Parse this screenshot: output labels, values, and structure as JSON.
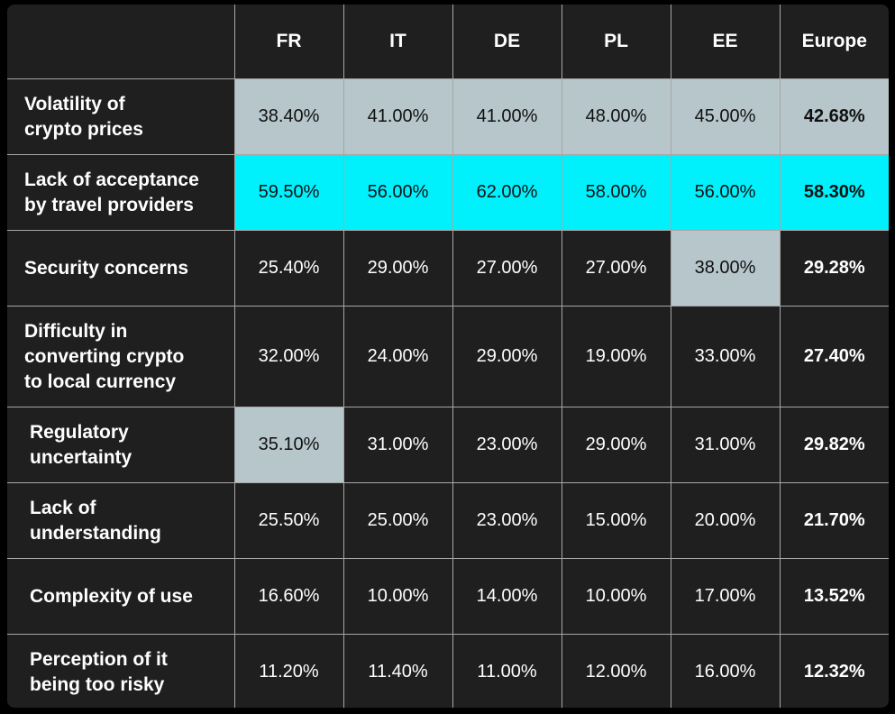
{
  "colors": {
    "background": "#1f1f1f",
    "highlight_grey": "#b6c6cb",
    "highlight_cyan": "#00f0fc",
    "text": "#ffffff"
  },
  "table": {
    "headers": [
      "",
      "FR",
      "IT",
      "DE",
      "PL",
      "EE",
      "Europe"
    ],
    "rows": [
      {
        "label": "Volatility of crypto prices",
        "label_lines": [
          "Volatility of",
          "crypto prices"
        ],
        "values": [
          "38.40%",
          "41.00%",
          "41.00%",
          "48.00%",
          "45.00%",
          "42.68%"
        ],
        "highlight": [
          "grey",
          "grey",
          "grey",
          "grey",
          "grey",
          "grey"
        ]
      },
      {
        "label": "Lack of acceptance by travel providers",
        "label_lines": [
          "Lack of acceptance",
          "by travel providers"
        ],
        "values": [
          "59.50%",
          "56.00%",
          "62.00%",
          "58.00%",
          "56.00%",
          "58.30%"
        ],
        "highlight": [
          "cyan",
          "cyan",
          "cyan",
          "cyan",
          "cyan",
          "cyan"
        ]
      },
      {
        "label": "Security concerns",
        "label_lines": [
          "Security concerns"
        ],
        "values": [
          "25.40%",
          "29.00%",
          "27.00%",
          "27.00%",
          "38.00%",
          "29.28%"
        ],
        "highlight": [
          "",
          "",
          "",
          "",
          "grey",
          ""
        ]
      },
      {
        "label": "Difficulty in converting crypto to local currency",
        "label_lines": [
          "Difficulty in",
          "converting crypto",
          "to local currency"
        ],
        "values": [
          "32.00%",
          "24.00%",
          "29.00%",
          "19.00%",
          "33.00%",
          "27.40%"
        ],
        "highlight": [
          "",
          "",
          "",
          "",
          "",
          ""
        ]
      },
      {
        "label": "Regulatory uncertainty",
        "label_lines": [
          "Regulatory",
          "uncertainty"
        ],
        "values": [
          "35.10%",
          "31.00%",
          "23.00%",
          "29.00%",
          "31.00%",
          "29.82%"
        ],
        "highlight": [
          "grey",
          "",
          "",
          "",
          "",
          ""
        ]
      },
      {
        "label": "Lack of understanding",
        "label_lines": [
          "Lack of",
          "understanding"
        ],
        "values": [
          "25.50%",
          "25.00%",
          "23.00%",
          "15.00%",
          "20.00%",
          "21.70%"
        ],
        "highlight": [
          "",
          "",
          "",
          "",
          "",
          ""
        ]
      },
      {
        "label": "Complexity of use",
        "label_lines": [
          "Complexity of use"
        ],
        "values": [
          "16.60%",
          "10.00%",
          "14.00%",
          "10.00%",
          "17.00%",
          "13.52%"
        ],
        "highlight": [
          "",
          "",
          "",
          "",
          "",
          ""
        ]
      },
      {
        "label": "Perception of it being too risky",
        "label_lines": [
          "Perception of it",
          "being too risky"
        ],
        "values": [
          "11.20%",
          "11.40%",
          "11.00%",
          "12.00%",
          "16.00%",
          "12.32%"
        ],
        "highlight": [
          "",
          "",
          "",
          "",
          "",
          ""
        ]
      }
    ]
  }
}
